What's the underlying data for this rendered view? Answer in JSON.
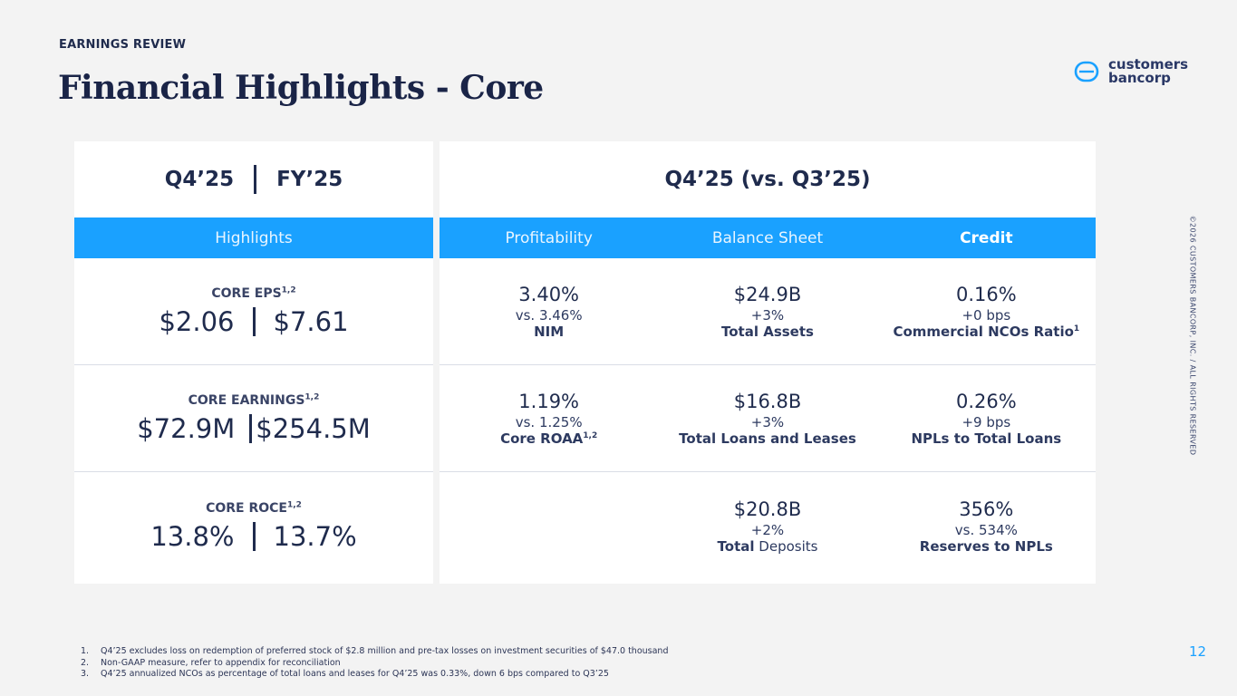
{
  "header": {
    "eyebrow": "EARNINGS REVIEW",
    "title": "Financial Highlights - Core"
  },
  "logo": {
    "line1": "customers",
    "line2": "bancorp",
    "icon": "bank-logo-icon",
    "color": "#2a3866"
  },
  "left_panel": {
    "period_q": "Q4’25",
    "period_fy": "FY’25",
    "band_label": "Highlights",
    "rows": [
      {
        "label": "CORE EPS",
        "sup": "1,2",
        "q": "$2.06",
        "fy": "$7.61"
      },
      {
        "label": "CORE EARNINGS",
        "sup": "1,2",
        "q": "$72.9M",
        "fy": "$254.5M"
      },
      {
        "label": "CORE ROCE",
        "sup": "1,2",
        "q": "13.8%",
        "fy": "13.7%"
      }
    ]
  },
  "right_panel": {
    "title": "Q4’25 (vs. Q3’25)",
    "columns": [
      "Profitability",
      "Balance Sheet",
      "Credit"
    ],
    "rows": [
      [
        {
          "value": "3.40%",
          "delta": "vs. 3.46%",
          "name": "NIM",
          "sup": ""
        },
        {
          "value": "$24.9B",
          "delta": "+3%",
          "name": "Total Assets",
          "sup": ""
        },
        {
          "value": "0.16%",
          "delta": "+0 bps",
          "name": "Commercial NCOs Ratio",
          "sup": "1"
        }
      ],
      [
        {
          "value": "1.19%",
          "delta": "vs. 1.25%",
          "name": "Core ROAA",
          "sup": "1,2"
        },
        {
          "value": "$16.8B",
          "delta": "+3%",
          "name": "Total Loans and Leases",
          "sup": ""
        },
        {
          "value": "0.26%",
          "delta": "+9 bps",
          "name": "NPLs to Total Loans",
          "sup": ""
        }
      ],
      [
        {
          "value": "",
          "delta": "",
          "name": "",
          "sup": ""
        },
        {
          "value": "$20.8B",
          "delta": "+2%",
          "name_bold": "Total",
          "name_rest": " Deposits",
          "sup": ""
        },
        {
          "value": "356%",
          "delta": "vs. 534%",
          "name": "Reserves to NPLs",
          "sup": ""
        }
      ]
    ]
  },
  "footnotes": [
    {
      "num": "1.",
      "text": "Q4’25 excludes loss on redemption of preferred stock of $2.8 million and pre-tax losses on investment securities of $47.0 thousand"
    },
    {
      "num": "2.",
      "text": "Non-GAAP measure, refer to appendix for reconciliation"
    },
    {
      "num": "3.",
      "text": "Q4’25 annualized NCOs as percentage of total loans and leases for Q4’25 was 0.33%, down 6 bps compared to Q3’25"
    }
  ],
  "copyright": "©2026 CUSTOMERS BANCORP, INC. / ALL RIGHTS RESERVED",
  "page_number": "12",
  "colors": {
    "accent": "#1aa1ff",
    "navy": "#1f2b4d",
    "background": "#f3f3f3"
  }
}
